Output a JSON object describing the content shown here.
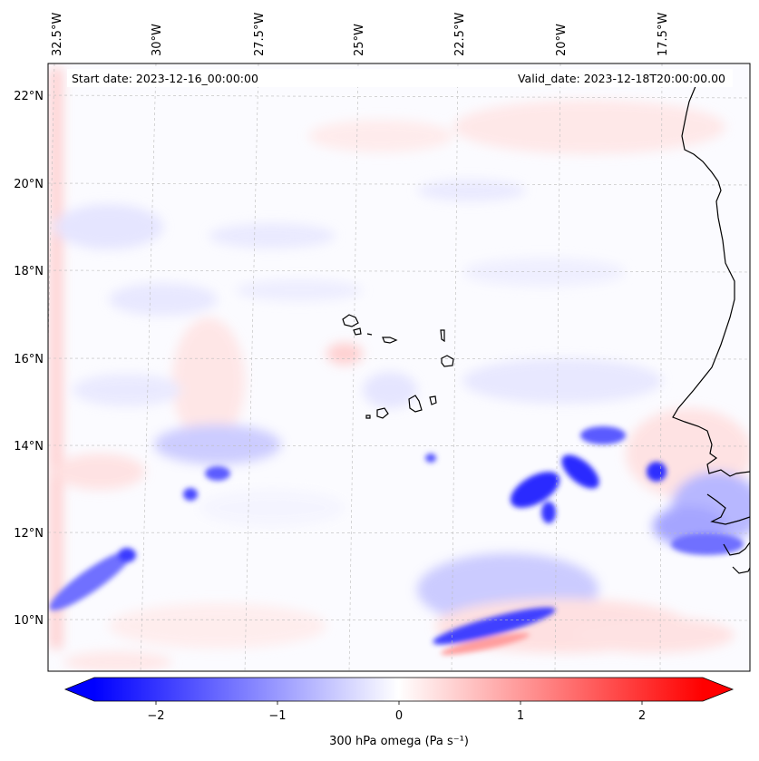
{
  "header": {
    "start_date": "Start date: 2023-12-16_00:00:00",
    "valid_date": "Valid_date: 2023-12-18T20:00:00.00"
  },
  "map": {
    "lon_labels": [
      "32.5°W",
      "30°W",
      "27.5°W",
      "25°W",
      "22.5°W",
      "20°W",
      "17.5°W"
    ],
    "lat_labels": [
      "22°N",
      "20°N",
      "18°N",
      "16°N",
      "14°N",
      "12°N",
      "10°N"
    ]
  },
  "colorbar": {
    "ticks": [
      "−2",
      "−1",
      "0",
      "1",
      "2"
    ],
    "label": "300 hPa omega (Pa s⁻¹)",
    "low_color": "#0000ff",
    "mid_color": "#ffffff",
    "high_color": "#ff0000"
  }
}
